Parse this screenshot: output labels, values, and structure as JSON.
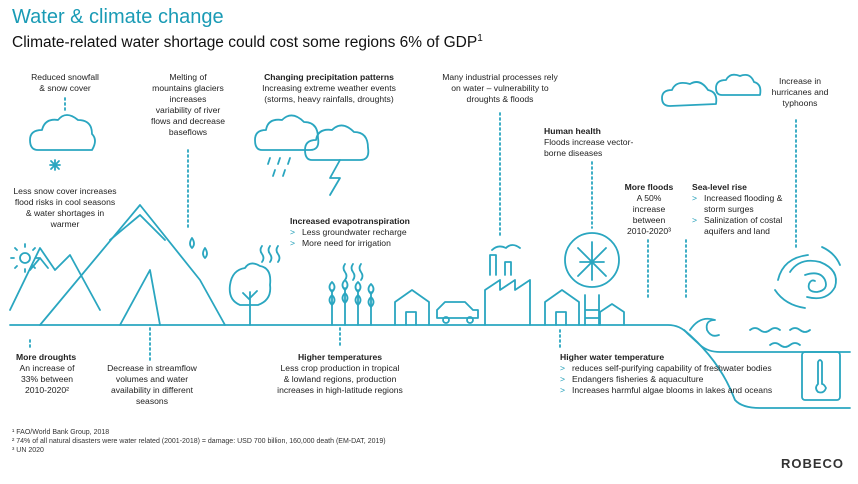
{
  "title": "Water & climate change",
  "subtitle": "Climate-related water shortage could cost some regions 6% of GDP",
  "subtitle_sup": "1",
  "colors": {
    "accent": "#1a9bb5",
    "line": "#2aa6c0"
  },
  "labels": {
    "snowfall": [
      "Reduced snowfall",
      "& snow cover"
    ],
    "glaciers": [
      "Melting of",
      "mountains glaciers",
      "increases",
      "variability of river",
      "flows and decrease",
      "baseflows"
    ],
    "precip_title": "Changing precipitation patterns",
    "precip_text": [
      "Increasing extreme weather events",
      "(storms, heavy rainfalls, droughts)"
    ],
    "industrial": [
      "Many industrial processes rely",
      "on water – vulnerability to",
      "droughts & floods"
    ],
    "hurricanes": [
      "Increase in",
      "hurricanes and",
      "typhoons"
    ],
    "snowcover": [
      "Less snow cover increases",
      "flood risks in cool seasons",
      "& water shortages in",
      "warmer"
    ],
    "human_health_title": "Human health",
    "human_health_text": [
      "Floods increase vector-",
      "borne diseases"
    ],
    "evapo_title": "Increased evapotranspiration",
    "evapo_items": [
      "Less groundwater recharge",
      "More need for irrigation"
    ],
    "floods_title": "More floods",
    "floods_text": [
      "A 50%",
      "increase",
      "between",
      "2010-2020³"
    ],
    "sealevel_title": "Sea-level rise",
    "sealevel_items": [
      "Increased flooding & storm surges",
      "Salinization of costal aquifers and land"
    ],
    "droughts_title": "More droughts",
    "droughts_text": [
      "An increase of",
      "33% between",
      "2010-2020²"
    ],
    "streamflow": [
      "Decrease in streamflow",
      "volumes and water",
      "availability in different",
      "seasons"
    ],
    "temps_title": "Higher temperatures",
    "temps_text": [
      "Less crop production in tropical",
      "& lowland regions, production",
      "increases in high-latitude regions"
    ],
    "water_temp_title": "Higher water temperature",
    "water_temp_items": [
      "reduces self-purifying capability of freshwater bodies",
      "Endangers fisheries & aquaculture",
      "Increases harmful algae blooms in lakes and oceans"
    ]
  },
  "footnotes": [
    "¹ FAO/World Bank Group, 2018",
    "² 74% of all natural disasters were water related (2001-2018) = damage: USD 700 billion, 160,000 death (EM-DAT, 2019)",
    "³ UN 2020"
  ],
  "logo": "ROBECO",
  "icons": [
    "snow-cloud-icon",
    "sun-icon",
    "mountain-icon",
    "glacier-drops-icon",
    "rain-cloud-icon",
    "lightning-icon",
    "tree-icon",
    "heat-waves-icon",
    "wheat-icon",
    "house-icon",
    "car-icon",
    "factory-icon",
    "mosquito-icon",
    "floodgate-icon",
    "clouds-icon",
    "hurricane-icon",
    "waves-icon",
    "thermometer-icon"
  ]
}
